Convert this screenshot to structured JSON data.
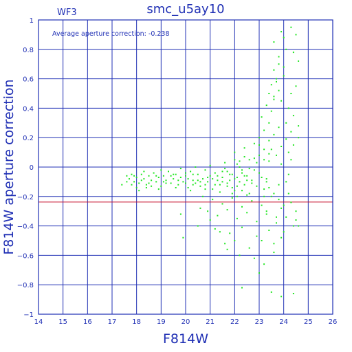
{
  "chart_data": {
    "type": "scatter",
    "title": "smc_u5ay10",
    "corner_label": "WF3",
    "annotation": "Average aperture correction: -0.238",
    "xlabel": "F814W",
    "ylabel": "F814W aperture correction",
    "xlim": [
      14,
      26
    ],
    "ylim": [
      -1,
      1
    ],
    "x_ticks": [
      14,
      15,
      16,
      17,
      18,
      19,
      20,
      21,
      22,
      23,
      24,
      25,
      26
    ],
    "y_ticks": [
      -1,
      -0.8,
      -0.6,
      -0.4,
      -0.2,
      0,
      0.2,
      0.4,
      0.6,
      0.8,
      1
    ],
    "y_tick_labels": [
      "−1",
      "−0.8",
      "−0.6",
      "−0.4",
      "−0.2",
      "0",
      "0.2",
      "0.4",
      "0.6",
      "0.8",
      "1"
    ],
    "grid": true,
    "reference_line": {
      "y": -0.238,
      "color": "#c8102e"
    },
    "point_color": "#22e622",
    "axis_color": "#1f2fb4",
    "series": [
      {
        "points": [
          [
            17.4,
            -0.12
          ],
          [
            17.6,
            -0.06
          ],
          [
            17.7,
            -0.08
          ],
          [
            17.8,
            -0.05
          ],
          [
            17.9,
            -0.1
          ],
          [
            18.0,
            -0.07
          ],
          [
            18.1,
            -0.11
          ],
          [
            18.2,
            -0.05
          ],
          [
            18.3,
            -0.08
          ],
          [
            18.4,
            -0.12
          ],
          [
            18.5,
            -0.06
          ],
          [
            18.6,
            -0.09
          ],
          [
            18.7,
            -0.04
          ],
          [
            18.8,
            -0.1
          ],
          [
            18.9,
            -0.07
          ],
          [
            19.0,
            -0.13
          ],
          [
            19.1,
            -0.06
          ],
          [
            19.2,
            -0.09
          ],
          [
            19.3,
            -0.03
          ],
          [
            19.4,
            -0.11
          ],
          [
            19.5,
            -0.08
          ],
          [
            19.6,
            -0.05
          ],
          [
            19.7,
            -0.12
          ],
          [
            19.8,
            -0.07
          ],
          [
            19.9,
            -0.1
          ],
          [
            20.0,
            -0.06
          ],
          [
            20.1,
            -0.14
          ],
          [
            20.2,
            -0.03
          ],
          [
            20.3,
            -0.09
          ],
          [
            20.4,
            -0.11
          ],
          [
            20.5,
            -0.05
          ],
          [
            20.6,
            -0.13
          ],
          [
            20.7,
            -0.08
          ],
          [
            20.8,
            -0.02
          ],
          [
            20.9,
            -0.1
          ],
          [
            21.0,
            -0.06
          ],
          [
            21.1,
            -0.15
          ],
          [
            21.2,
            -0.04
          ],
          [
            21.3,
            -0.09
          ],
          [
            21.4,
            -0.12
          ],
          [
            21.5,
            -0.07
          ],
          [
            21.6,
            -0.01
          ],
          [
            21.7,
            -0.11
          ],
          [
            21.8,
            -0.05
          ],
          [
            21.9,
            -0.14
          ],
          [
            22.0,
            -0.08
          ],
          [
            22.1,
            0.02
          ],
          [
            22.2,
            -0.1
          ],
          [
            22.3,
            -0.04
          ],
          [
            22.4,
            -0.12
          ],
          [
            22.5,
            -0.06
          ],
          [
            22.6,
            0.05
          ],
          [
            22.7,
            -0.09
          ],
          [
            22.8,
            -0.02
          ],
          [
            22.9,
            -0.13
          ],
          [
            23.0,
            0.08
          ],
          [
            23.1,
            -0.07
          ],
          [
            23.2,
            0.12
          ],
          [
            23.3,
            -0.1
          ],
          [
            23.4,
            0.04
          ],
          [
            17.6,
            -0.1
          ],
          [
            17.9,
            -0.06
          ],
          [
            18.2,
            -0.09
          ],
          [
            18.5,
            -0.11
          ],
          [
            18.8,
            -0.06
          ],
          [
            19.1,
            -0.1
          ],
          [
            19.4,
            -0.06
          ],
          [
            19.7,
            -0.09
          ],
          [
            20.0,
            -0.11
          ],
          [
            20.3,
            -0.05
          ],
          [
            20.6,
            -0.1
          ],
          [
            20.9,
            -0.07
          ],
          [
            21.2,
            -0.12
          ],
          [
            21.5,
            -0.03
          ],
          [
            21.8,
            -0.09
          ],
          [
            22.1,
            -0.13
          ],
          [
            22.4,
            -0.06
          ],
          [
            22.7,
            -0.11
          ],
          [
            23.0,
            -0.04
          ],
          [
            23.3,
            -0.08
          ],
          [
            18.0,
            -0.14
          ],
          [
            18.9,
            -0.15
          ],
          [
            19.6,
            -0.14
          ],
          [
            20.2,
            -0.16
          ],
          [
            20.8,
            -0.15
          ],
          [
            21.4,
            -0.17
          ],
          [
            22.0,
            -0.16
          ],
          [
            22.6,
            -0.18
          ],
          [
            23.2,
            -0.15
          ],
          [
            23.8,
            -0.12
          ],
          [
            19.0,
            -0.02
          ],
          [
            19.8,
            -0.01
          ],
          [
            20.4,
            0.0
          ],
          [
            21.0,
            0.01
          ],
          [
            21.6,
            0.03
          ],
          [
            22.2,
            0.04
          ],
          [
            22.8,
            0.06
          ],
          [
            23.4,
            0.09
          ],
          [
            23.9,
            0.02
          ],
          [
            24.2,
            -0.05
          ],
          [
            20.7,
            -0.2
          ],
          [
            21.1,
            -0.22
          ],
          [
            21.5,
            -0.25
          ],
          [
            21.9,
            -0.21
          ],
          [
            22.3,
            -0.27
          ],
          [
            22.7,
            -0.23
          ],
          [
            23.1,
            -0.26
          ],
          [
            23.5,
            -0.2
          ],
          [
            23.9,
            -0.28
          ],
          [
            24.3,
            -0.24
          ],
          [
            20.9,
            -0.3
          ],
          [
            21.3,
            -0.33
          ],
          [
            21.7,
            -0.29
          ],
          [
            22.1,
            -0.35
          ],
          [
            22.5,
            -0.31
          ],
          [
            22.9,
            -0.37
          ],
          [
            23.3,
            -0.32
          ],
          [
            23.7,
            -0.38
          ],
          [
            24.1,
            -0.34
          ],
          [
            24.5,
            -0.36
          ],
          [
            20.5,
            -0.4
          ],
          [
            21.2,
            -0.42
          ],
          [
            21.8,
            -0.45
          ],
          [
            22.3,
            -0.41
          ],
          [
            22.9,
            -0.47
          ],
          [
            23.4,
            -0.43
          ],
          [
            23.9,
            -0.48
          ],
          [
            24.4,
            -0.4
          ],
          [
            21.6,
            -0.52
          ],
          [
            22.6,
            -0.55
          ],
          [
            23.1,
            -0.5
          ],
          [
            23.6,
            -0.58
          ],
          [
            21.7,
            -0.56
          ],
          [
            22.8,
            -0.62
          ],
          [
            23.2,
            -0.66
          ],
          [
            19.9,
            -0.48
          ],
          [
            22.2,
            -0.6
          ],
          [
            23.0,
            -0.72
          ],
          [
            22.3,
            -0.82
          ],
          [
            23.5,
            -0.85
          ],
          [
            24.4,
            -0.86
          ],
          [
            23.9,
            -0.88
          ],
          [
            24.6,
            -0.4
          ],
          [
            24.5,
            -0.3
          ],
          [
            21.4,
            -0.44
          ],
          [
            22.0,
            -0.5
          ],
          [
            20.6,
            -0.28
          ],
          [
            19.8,
            -0.32
          ],
          [
            21.0,
            -0.36
          ],
          [
            23.6,
            -0.52
          ],
          [
            22.0,
            0.1
          ],
          [
            22.4,
            0.13
          ],
          [
            22.8,
            0.16
          ],
          [
            23.0,
            0.2
          ],
          [
            23.2,
            0.25
          ],
          [
            23.4,
            0.3
          ],
          [
            23.1,
            0.34
          ],
          [
            23.5,
            0.38
          ],
          [
            23.3,
            0.42
          ],
          [
            23.6,
            0.46
          ],
          [
            23.0,
            0.15
          ],
          [
            23.2,
            0.05
          ],
          [
            23.4,
            0.18
          ],
          [
            23.6,
            0.22
          ],
          [
            23.8,
            0.27
          ],
          [
            23.5,
            0.12
          ],
          [
            23.7,
            0.08
          ],
          [
            23.9,
            0.14
          ],
          [
            24.1,
            0.19
          ],
          [
            24.3,
            0.24
          ],
          [
            23.4,
            0.5
          ],
          [
            23.6,
            0.48
          ],
          [
            23.8,
            0.52
          ],
          [
            23.5,
            0.56
          ],
          [
            23.7,
            0.6
          ],
          [
            23.9,
            0.45
          ],
          [
            24.0,
            0.62
          ],
          [
            23.6,
            0.66
          ],
          [
            23.8,
            0.7
          ],
          [
            24.2,
            0.4
          ],
          [
            24.0,
            0.68
          ],
          [
            24.3,
            0.5
          ],
          [
            24.5,
            0.55
          ],
          [
            24.1,
            0.3
          ],
          [
            24.4,
            0.35
          ],
          [
            24.6,
            0.28
          ],
          [
            24.2,
            0.1
          ],
          [
            24.4,
            0.15
          ],
          [
            24.6,
            0.2
          ],
          [
            24.3,
            0.05
          ],
          [
            23.8,
            0.75
          ],
          [
            24.1,
            0.8
          ],
          [
            23.6,
            0.85
          ],
          [
            24.4,
            0.78
          ],
          [
            24.5,
            0.9
          ],
          [
            24.3,
            0.95
          ],
          [
            23.9,
            0.92
          ],
          [
            24.0,
            0.88
          ],
          [
            24.6,
            0.72
          ],
          [
            23.7,
            0.58
          ],
          [
            23.2,
            -0.2
          ],
          [
            23.4,
            -0.14
          ],
          [
            23.6,
            -0.18
          ],
          [
            23.8,
            -0.22
          ],
          [
            24.0,
            -0.26
          ],
          [
            23.3,
            -0.3
          ],
          [
            23.7,
            -0.34
          ],
          [
            24.2,
            -0.18
          ],
          [
            24.0,
            -0.44
          ],
          [
            24.1,
            -0.1
          ],
          [
            21.9,
            -0.05
          ],
          [
            22.1,
            -0.07
          ],
          [
            22.3,
            -0.02
          ],
          [
            22.5,
            -0.09
          ],
          [
            22.2,
            0.0
          ],
          [
            21.7,
            -0.03
          ],
          [
            22.6,
            -0.01
          ],
          [
            22.9,
            0.03
          ],
          [
            22.4,
            0.07
          ],
          [
            22.0,
            0.05
          ],
          [
            21.3,
            -0.06
          ],
          [
            21.5,
            -0.1
          ],
          [
            21.1,
            -0.08
          ],
          [
            20.8,
            -0.12
          ],
          [
            20.5,
            -0.09
          ],
          [
            21.7,
            -0.13
          ],
          [
            21.9,
            -0.18
          ],
          [
            22.1,
            -0.2
          ],
          [
            22.3,
            -0.16
          ],
          [
            22.5,
            -0.19
          ],
          [
            20.1,
            -0.08
          ],
          [
            20.3,
            -0.12
          ],
          [
            20.0,
            -0.04
          ],
          [
            19.5,
            -0.05
          ],
          [
            19.2,
            -0.11
          ],
          [
            18.6,
            -0.13
          ],
          [
            18.3,
            -0.03
          ],
          [
            17.8,
            -0.12
          ],
          [
            18.1,
            -0.16
          ],
          [
            18.4,
            -0.14
          ]
        ]
      }
    ]
  }
}
